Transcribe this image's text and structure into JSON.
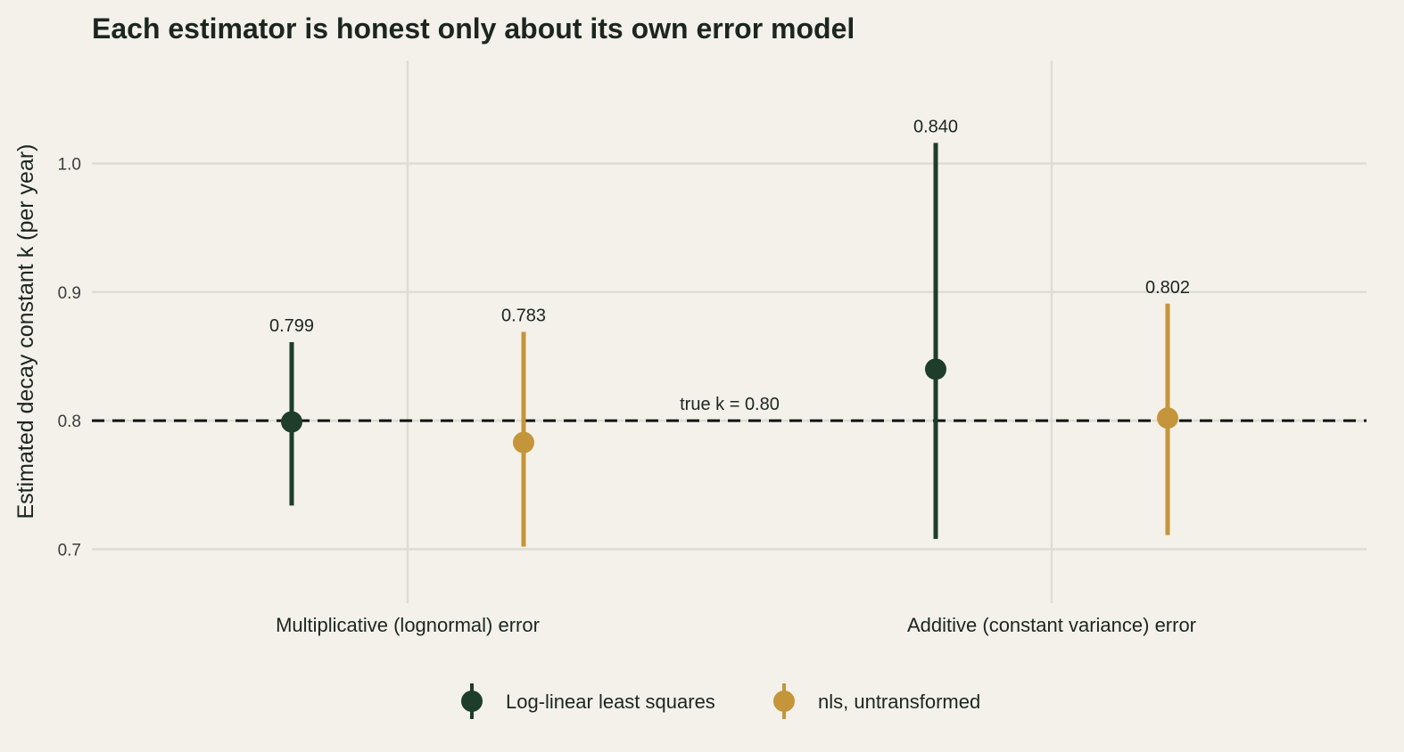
{
  "chart_data": {
    "type": "scatter",
    "title": "Each estimator is honest only about its own error model",
    "ylabel": "Estimated decay constant k (per year)",
    "xlabel": "",
    "categories": [
      "Multiplicative (lognormal) error",
      "Additive (constant variance) error"
    ],
    "ylim": [
      0.658,
      1.08
    ],
    "yticks": [
      0.7,
      0.8,
      0.9,
      1.0
    ],
    "ytick_labels": [
      "0.7",
      "0.8",
      "0.9",
      "1.0"
    ],
    "grid": true,
    "legend_position": "bottom",
    "reference_line": {
      "value": 0.8,
      "label": "true k = 0.80",
      "style": "dashed"
    },
    "series": [
      {
        "name": "Log-linear least squares",
        "color": "#1e3d2b",
        "points": [
          {
            "category": "Multiplicative (lognormal) error",
            "estimate": 0.799,
            "lower": 0.734,
            "upper": 0.861,
            "label": "0.799"
          },
          {
            "category": "Additive (constant variance) error",
            "estimate": 0.84,
            "lower": 0.708,
            "upper": 1.016,
            "label": "0.840"
          }
        ]
      },
      {
        "name": "nls, untransformed",
        "color": "#c4953a",
        "points": [
          {
            "category": "Multiplicative (lognormal) error",
            "estimate": 0.783,
            "lower": 0.702,
            "upper": 0.869,
            "label": "0.783"
          },
          {
            "category": "Additive (constant variance) error",
            "estimate": 0.802,
            "lower": 0.711,
            "upper": 0.891,
            "label": "0.802"
          }
        ]
      }
    ]
  }
}
